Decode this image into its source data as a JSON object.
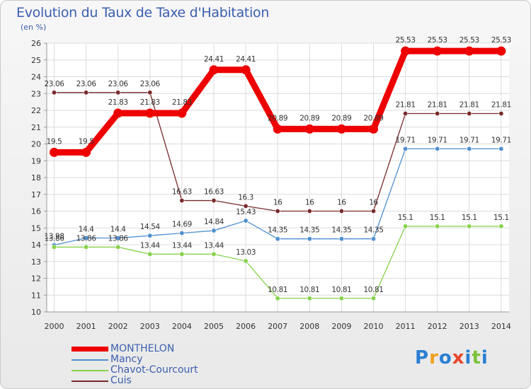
{
  "title": "Evolution du Taux de Taxe d'Habitation",
  "subtitle": "(en %)",
  "logo_text": "Proxiti",
  "chart_data": {
    "type": "line",
    "title": "Evolution du Taux de Taxe d'Habitation",
    "ylabel": "(en %)",
    "xlabel": "",
    "ylim": [
      10,
      26
    ],
    "grid": true,
    "legend_placement": "bottom-left",
    "x": [
      "2000",
      "2001",
      "2002",
      "2003",
      "2004",
      "2005",
      "2006",
      "2007",
      "2008",
      "2009",
      "2010",
      "2011",
      "2012",
      "2013",
      "2014"
    ],
    "yticks": [
      "10",
      "11",
      "12",
      "13",
      "14",
      "15",
      "16",
      "17",
      "18",
      "19",
      "20",
      "21",
      "22",
      "23",
      "24",
      "25",
      "26"
    ],
    "series": [
      {
        "name": "MONTHELON",
        "color": "#ee0000",
        "values": [
          19.5,
          19.5,
          21.83,
          21.83,
          21.83,
          24.41,
          24.41,
          20.89,
          20.89,
          20.89,
          20.89,
          25.53,
          25.53,
          25.53,
          25.53
        ],
        "labels": [
          "19.5",
          "19.5",
          "21.83",
          "21.83",
          "21.83",
          "24.41",
          "24.41",
          "20.89",
          "20.89",
          "20.89",
          "20.89",
          "25.53",
          "25.53",
          "25.53",
          "25.53"
        ]
      },
      {
        "name": "Mancy",
        "color": "#4f8fd0",
        "values": [
          13.98,
          14.4,
          14.4,
          14.54,
          14.69,
          14.84,
          15.43,
          14.35,
          14.35,
          14.35,
          14.35,
          19.71,
          19.71,
          19.71,
          19.71
        ],
        "labels": [
          "13.98",
          "14.4",
          "14.4",
          "14.54",
          "14.69",
          "14.84",
          "15.43",
          "14.35",
          "14.35",
          "14.35",
          "14.35",
          "19.71",
          "19.71",
          "19.71",
          "19.71"
        ]
      },
      {
        "name": "Chavot-Courcourt",
        "color": "#86d24a",
        "values": [
          13.86,
          13.86,
          13.86,
          13.44,
          13.44,
          13.44,
          13.03,
          10.81,
          10.81,
          10.81,
          10.81,
          15.1,
          15.1,
          15.1,
          15.1
        ],
        "labels": [
          "13.86",
          "13.86",
          "13.86",
          "13.44",
          "13.44",
          "13.44",
          "13.03",
          "10.81",
          "10.81",
          "10.81",
          "10.81",
          "15.1",
          "15.1",
          "15.1",
          "15.1"
        ]
      },
      {
        "name": "Cuis",
        "color": "#7a2a2a",
        "values": [
          23.06,
          23.06,
          23.06,
          23.06,
          16.63,
          16.63,
          16.3,
          16,
          16,
          16,
          16,
          21.81,
          21.81,
          21.81,
          21.81
        ],
        "labels": [
          "23.06",
          "23.06",
          "23.06",
          "23.06",
          "16.63",
          "16.63",
          "16.3",
          "16",
          "16",
          "16",
          "16",
          "21.81",
          "21.81",
          "21.81",
          "21.81"
        ]
      }
    ]
  }
}
